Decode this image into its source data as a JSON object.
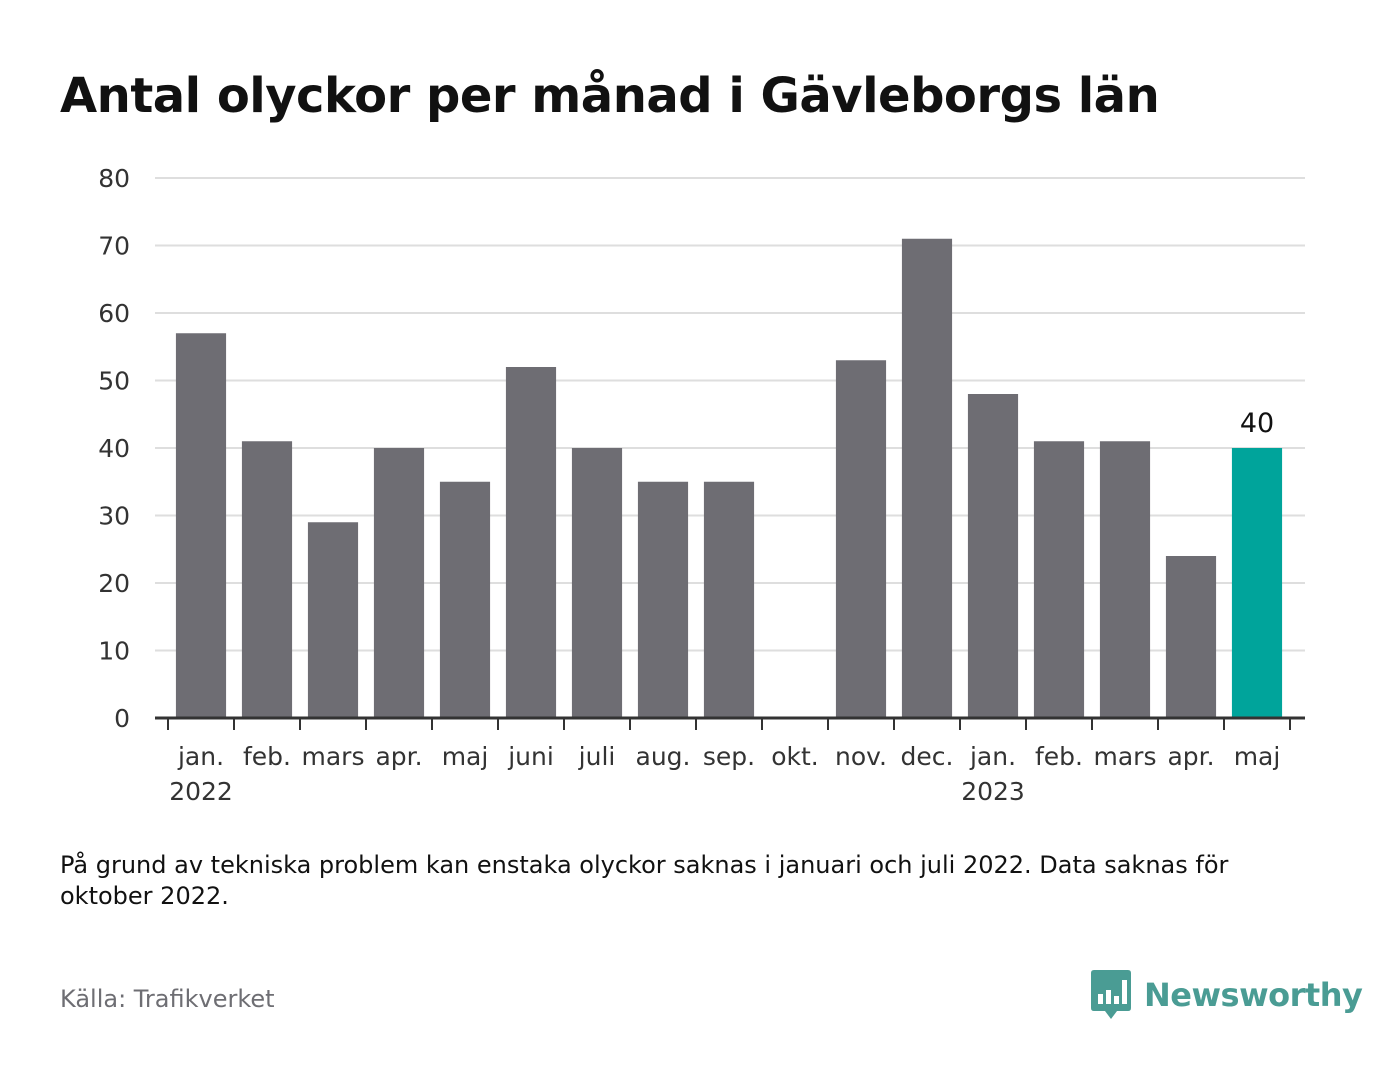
{
  "colors": {
    "bar": "#6e6d73",
    "highlight": "#00a49b",
    "grid": "#dedede",
    "axis": "#333333",
    "text": "#111111",
    "muted": "#6e6e73",
    "brand": "#4a9c94"
  },
  "header": {
    "title": "Antal olyckor per månad i Gävleborgs län"
  },
  "chart_data": {
    "type": "bar",
    "ylim": [
      0,
      80
    ],
    "yticks": [
      0,
      10,
      20,
      30,
      40,
      50,
      60,
      70,
      80
    ],
    "grid": true,
    "categories": [
      "jan.",
      "feb.",
      "mars",
      "apr.",
      "maj",
      "juni",
      "juli",
      "aug.",
      "sep.",
      "okt.",
      "nov.",
      "dec.",
      "jan.",
      "feb.",
      "mars",
      "apr.",
      "maj"
    ],
    "values": [
      57,
      41,
      29,
      40,
      35,
      52,
      40,
      35,
      35,
      null,
      53,
      71,
      48,
      41,
      41,
      24,
      40
    ],
    "year_labels": [
      {
        "index": 0,
        "label": "2022"
      },
      {
        "index": 12,
        "label": "2023"
      }
    ],
    "highlight_index": 16,
    "value_labels": [
      {
        "index": 16,
        "label": "40"
      }
    ]
  },
  "footer": {
    "note": "På grund av tekniska problem kan enstaka olyckor saknas i januari och juli 2022. Data saknas för oktober 2022.",
    "source": "Källa: Trafikverket",
    "brand_name": "Newsworthy",
    "brand_icon": "newsworthy-logo-icon"
  }
}
